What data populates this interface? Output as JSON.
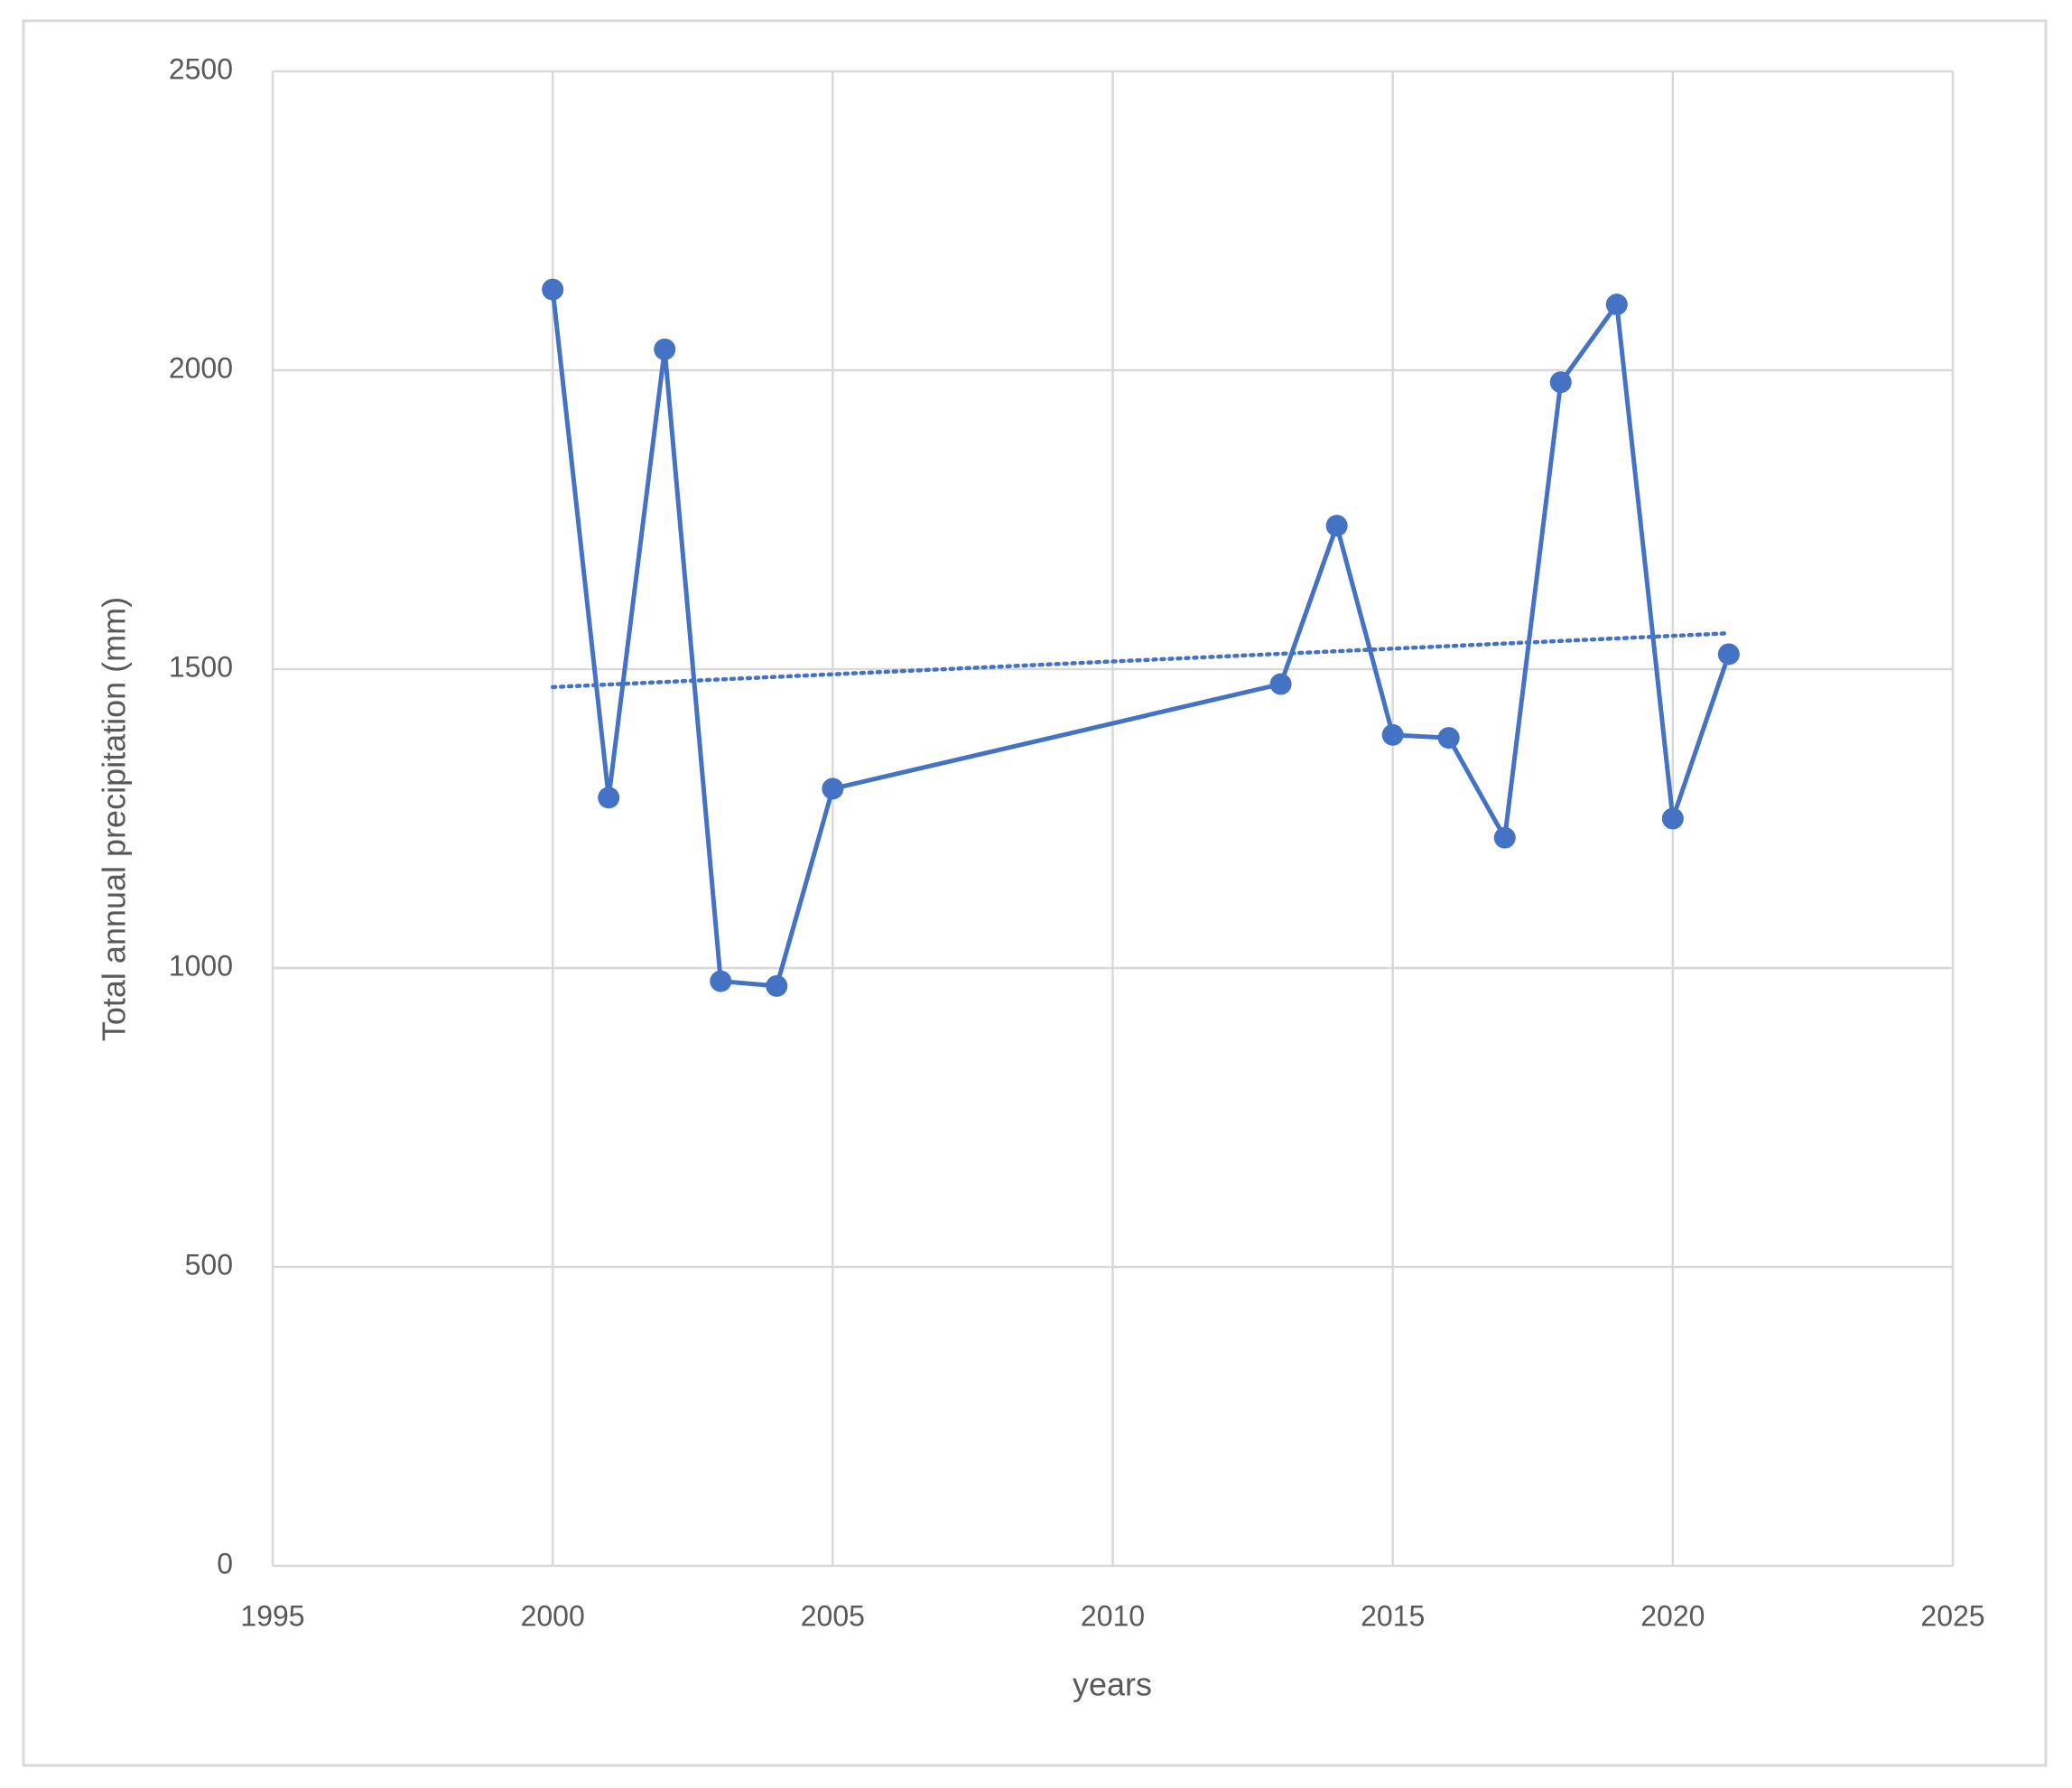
{
  "chart_data": {
    "type": "line",
    "x_label": "years",
    "y_label": "Total annual precipitation (mm)",
    "x": [
      2000,
      2001,
      2002,
      2003,
      2004,
      2005,
      2013,
      2014,
      2015,
      2016,
      2017,
      2018,
      2019,
      2020,
      2021
    ],
    "values": [
      2135,
      1285,
      2035,
      978,
      970,
      1300,
      1475,
      1740,
      1390,
      1385,
      1218,
      1980,
      2110,
      1250,
      1525
    ],
    "color": "#4472c4",
    "markers": true,
    "trendline": {
      "x": [
        2000,
        2021
      ],
      "values": [
        1470,
        1560
      ],
      "style": "dotted"
    },
    "xlim": [
      1995,
      2025
    ],
    "xticks": [
      1995,
      2000,
      2005,
      2010,
      2015,
      2020,
      2025
    ],
    "ylim": [
      0,
      2500
    ],
    "yticks": [
      0,
      500,
      1000,
      1500,
      2000,
      2500
    ],
    "grid": true
  }
}
